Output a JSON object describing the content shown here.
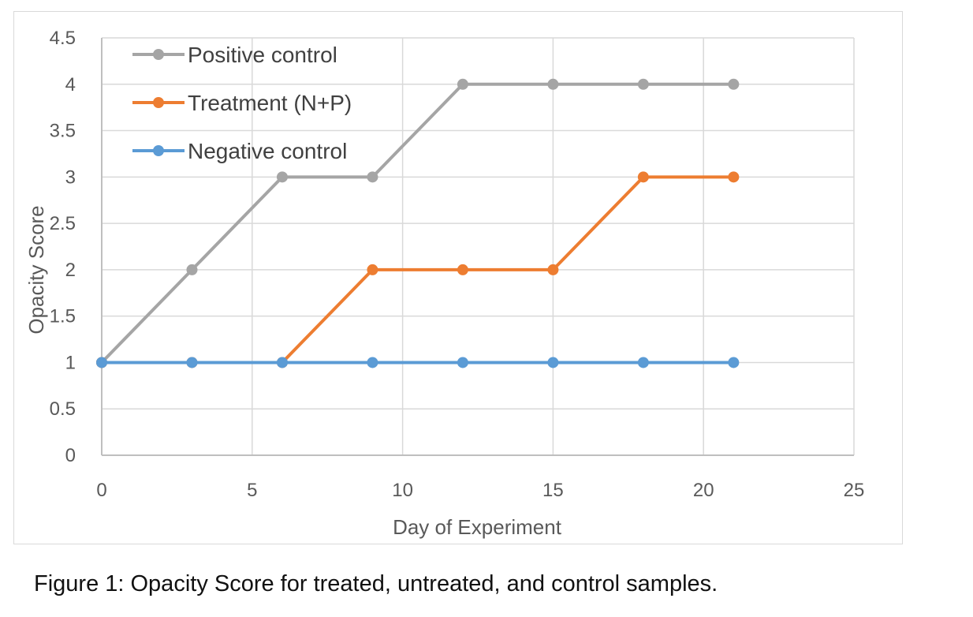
{
  "chart_data": {
    "type": "line",
    "xlabel": "Day of Experiment",
    "ylabel": "Opacity Score",
    "xlim": [
      0,
      25
    ],
    "ylim": [
      0,
      4.5
    ],
    "xticks": [
      "0",
      "5",
      "10",
      "15",
      "20",
      "25"
    ],
    "yticks": [
      "0",
      "0.5",
      "1",
      "1.5",
      "2",
      "2.5",
      "3",
      "3.5",
      "4",
      "4.5"
    ],
    "grid": true,
    "legend_position": "top-left",
    "x": [
      0,
      3,
      6,
      9,
      12,
      15,
      18,
      21
    ],
    "series": [
      {
        "name": "Positive control",
        "color": "#a5a5a5",
        "values": [
          1,
          2,
          3,
          3,
          4,
          4,
          4,
          4
        ]
      },
      {
        "name": "Treatment (N+P)",
        "color": "#ed7d31",
        "values": [
          1,
          1,
          1,
          2,
          2,
          2,
          3,
          3
        ]
      },
      {
        "name": "Negative control",
        "color": "#5b9bd5",
        "values": [
          1,
          1,
          1,
          1,
          1,
          1,
          1,
          1
        ]
      }
    ]
  },
  "caption": "Figure 1: Opacity Score for treated, untreated, and control samples."
}
